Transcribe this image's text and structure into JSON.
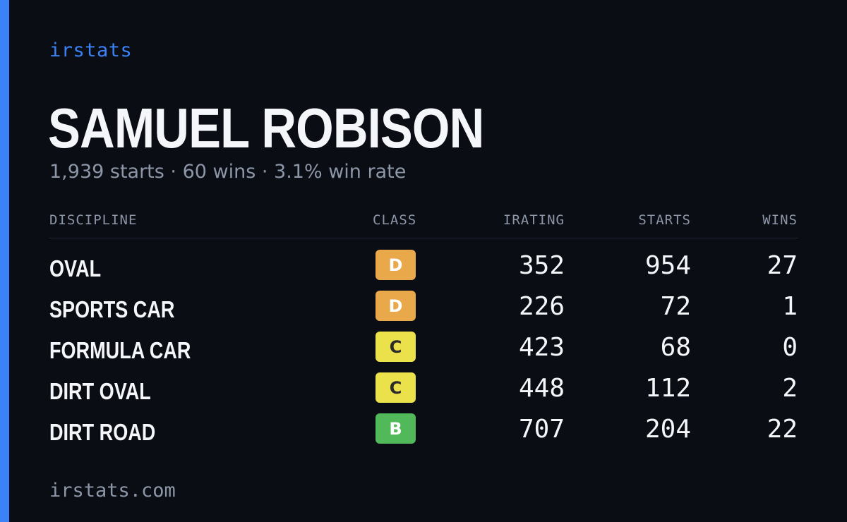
{
  "brand": "irstats",
  "player": {
    "name": "SAMUEL ROBISON",
    "summary": "1,939 starts · 60 wins · 3.1% win rate"
  },
  "table": {
    "headers": {
      "discipline": "DISCIPLINE",
      "class": "CLASS",
      "irating": "IRATING",
      "starts": "STARTS",
      "wins": "WINS"
    },
    "rows": [
      {
        "discipline": "OVAL",
        "class": "D",
        "class_color": "#e9a84a",
        "class_text_color": "#ffffff",
        "irating": "352",
        "starts": "954",
        "wins": "27"
      },
      {
        "discipline": "SPORTS CAR",
        "class": "D",
        "class_color": "#e9a84a",
        "class_text_color": "#ffffff",
        "irating": "226",
        "starts": "72",
        "wins": "1"
      },
      {
        "discipline": "FORMULA CAR",
        "class": "C",
        "class_color": "#ebe14a",
        "class_text_color": "#2a2a2a",
        "irating": "423",
        "starts": "68",
        "wins": "0"
      },
      {
        "discipline": "DIRT OVAL",
        "class": "C",
        "class_color": "#ebe14a",
        "class_text_color": "#2a2a2a",
        "irating": "448",
        "starts": "112",
        "wins": "2"
      },
      {
        "discipline": "DIRT ROAD",
        "class": "B",
        "class_color": "#52b95a",
        "class_text_color": "#ffffff",
        "irating": "707",
        "starts": "204",
        "wins": "22"
      }
    ]
  },
  "footer": {
    "url": "irstats.com"
  },
  "colors": {
    "background": "#0a0d14",
    "accent": "#3b82f6",
    "text_primary": "#f5f6fa",
    "text_muted": "#8d97a8"
  }
}
